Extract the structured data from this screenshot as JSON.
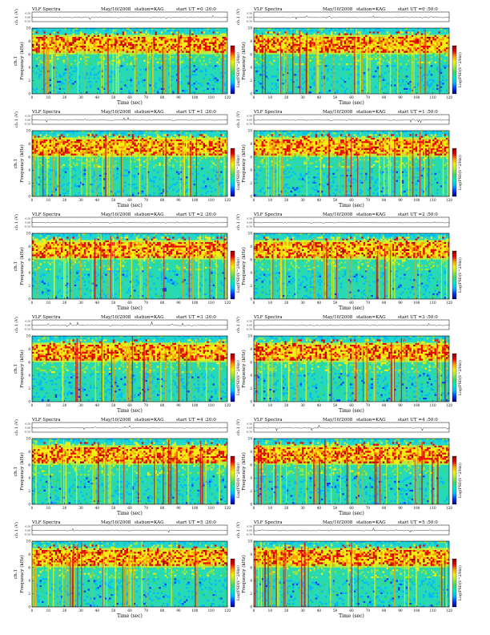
{
  "page": {
    "colors": {
      "background": "#ffffff",
      "ink": "#000000"
    },
    "colormap": [
      "#00007a",
      "#0033ff",
      "#00b8ff",
      "#00e8c8",
      "#39d86a",
      "#9be63a",
      "#f2f20a",
      "#ff9a00",
      "#e60000",
      "#8c0000"
    ]
  },
  "chart_data": [
    {
      "type": "heatmap",
      "title": "VLF Spectra",
      "date": "May/10/2008",
      "station": "station=KAG",
      "start_label": "start UT =0 :20:0",
      "xlabel": "Time (sec)",
      "ylabel": "Frequency (kHz)",
      "channel_label": "ch.1 (V)",
      "channel_ticks": [
        "0.20",
        "0.00",
        "-0.20"
      ],
      "colorbar_label": "Log(PSD(V^2/Hz))",
      "x_ticks": [
        0,
        10,
        20,
        30,
        40,
        50,
        60,
        70,
        80,
        90,
        100,
        110,
        120
      ],
      "y_ticks": [
        0,
        2,
        4,
        6,
        8,
        10
      ],
      "xlim": [
        0,
        120
      ],
      "ylim": [
        0,
        10
      ],
      "side_label": "ch.1"
    },
    {
      "type": "heatmap",
      "title": "VLF Spectra",
      "date": "May/10/2008",
      "station": "station=KAG",
      "start_label": "start UT =0 :50:0",
      "xlabel": "Time (sec)",
      "ylabel": "Frequency (kHz)",
      "channel_label": "ch.1 (V)",
      "channel_ticks": [
        "0.20",
        "0.00",
        "-0.20"
      ],
      "colorbar_label": "Log(PSD(V^2/Hz))",
      "x_ticks": [
        0,
        10,
        20,
        30,
        40,
        50,
        60,
        70,
        80,
        90,
        100,
        110,
        120
      ],
      "y_ticks": [
        0,
        2,
        4,
        6,
        8,
        10
      ],
      "xlim": [
        0,
        120
      ],
      "ylim": [
        0,
        10
      ],
      "side_label": ""
    },
    {
      "type": "heatmap",
      "title": "VLF Spectra",
      "date": "May/10/2008",
      "station": "station=KAG",
      "start_label": "start UT =1 :20:0",
      "xlabel": "Time (sec)",
      "ylabel": "Frequency (kHz)",
      "channel_label": "ch.1 (V)",
      "channel_ticks": [
        "0.20",
        "0.00",
        "-0.20"
      ],
      "colorbar_label": "Log(PSD(V^2/Hz))",
      "x_ticks": [
        0,
        10,
        20,
        30,
        40,
        50,
        60,
        70,
        80,
        90,
        100,
        110,
        120
      ],
      "y_ticks": [
        0,
        2,
        4,
        6,
        8,
        10
      ],
      "xlim": [
        0,
        120
      ],
      "ylim": [
        0,
        10
      ],
      "side_label": "ch.1"
    },
    {
      "type": "heatmap",
      "title": "VLF Spectra",
      "date": "May/10/2008",
      "station": "station=KAG",
      "start_label": "start UT =1 :50:0",
      "xlabel": "Time (sec)",
      "ylabel": "Frequency (kHz)",
      "channel_label": "ch.1 (V)",
      "channel_ticks": [
        "0.20",
        "0.00",
        "-0.20"
      ],
      "colorbar_label": "Log(PSD(V^2/Hz))",
      "x_ticks": [
        0,
        10,
        20,
        30,
        40,
        50,
        60,
        70,
        80,
        90,
        100,
        110,
        120
      ],
      "y_ticks": [
        0,
        2,
        4,
        6,
        8,
        10
      ],
      "xlim": [
        0,
        120
      ],
      "ylim": [
        0,
        10
      ],
      "side_label": ""
    },
    {
      "type": "heatmap",
      "title": "VLF Spectra",
      "date": "May/10/2008",
      "station": "station=KAG",
      "start_label": "start UT =2 :20:0",
      "xlabel": "Time (sec)",
      "ylabel": "Frequency (kHz)",
      "channel_label": "ch.1 (V)",
      "channel_ticks": [
        "0.20",
        "0.00",
        "-0.20"
      ],
      "colorbar_label": "Log(PSD(V^2/Hz))",
      "x_ticks": [
        0,
        10,
        20,
        30,
        40,
        50,
        60,
        70,
        80,
        90,
        100,
        110,
        120
      ],
      "y_ticks": [
        0,
        2,
        4,
        6,
        8,
        10
      ],
      "xlim": [
        0,
        120
      ],
      "ylim": [
        0,
        10
      ],
      "side_label": "ch.1"
    },
    {
      "type": "heatmap",
      "title": "VLF Spectra",
      "date": "May/10/2008",
      "station": "station=KAG",
      "start_label": "start UT =2 :50:0",
      "xlabel": "Time (sec)",
      "ylabel": "Frequency (kHz)",
      "channel_label": "ch.1 (V)",
      "channel_ticks": [
        "0.20",
        "0.00",
        "-0.20"
      ],
      "colorbar_label": "Log(PSD(V^2/Hz))",
      "x_ticks": [
        0,
        10,
        20,
        30,
        40,
        50,
        60,
        70,
        80,
        90,
        100,
        110,
        120
      ],
      "y_ticks": [
        0,
        2,
        4,
        6,
        8,
        10
      ],
      "xlim": [
        0,
        120
      ],
      "ylim": [
        0,
        10
      ],
      "side_label": ""
    },
    {
      "type": "heatmap",
      "title": "VLF Spectra",
      "date": "May/10/2008",
      "station": "station=KAG",
      "start_label": "start UT =3 :20:0",
      "xlabel": "Time (sec)",
      "ylabel": "Frequency (kHz)",
      "channel_label": "ch.1 (V)",
      "channel_ticks": [
        "0.20",
        "0.00",
        "-0.20"
      ],
      "colorbar_label": "Log(PSD(V^2/Hz))",
      "x_ticks": [
        0,
        10,
        20,
        30,
        40,
        50,
        60,
        70,
        80,
        90,
        100,
        110,
        120
      ],
      "y_ticks": [
        0,
        2,
        4,
        6,
        8,
        10
      ],
      "xlim": [
        0,
        120
      ],
      "ylim": [
        0,
        10
      ],
      "side_label": "ch.1"
    },
    {
      "type": "heatmap",
      "title": "VLF Spectra",
      "date": "May/10/2008",
      "station": "station=KAG",
      "start_label": "start UT =3 :50:0",
      "xlabel": "Time (sec)",
      "ylabel": "Frequency (kHz)",
      "channel_label": "ch.1 (V)",
      "channel_ticks": [
        "0.20",
        "0.00",
        "-0.20"
      ],
      "colorbar_label": "Log(PSD(V^2/Hz))",
      "x_ticks": [
        0,
        10,
        20,
        30,
        40,
        50,
        60,
        70,
        80,
        90,
        100,
        110,
        120
      ],
      "y_ticks": [
        0,
        2,
        4,
        6,
        8,
        10
      ],
      "xlim": [
        0,
        120
      ],
      "ylim": [
        0,
        10
      ],
      "side_label": ""
    },
    {
      "type": "heatmap",
      "title": "VLF Spectra",
      "date": "May/10/2008",
      "station": "station=KAG",
      "start_label": "start UT =4 :20:0",
      "xlabel": "Time (sec)",
      "ylabel": "Frequency (kHz)",
      "channel_label": "ch.1 (V)",
      "channel_ticks": [
        "0.20",
        "0.00",
        "-0.20"
      ],
      "colorbar_label": "Log(PSD(V^2/Hz))",
      "x_ticks": [
        0,
        10,
        20,
        30,
        40,
        50,
        60,
        70,
        80,
        90,
        100,
        110,
        120
      ],
      "y_ticks": [
        0,
        2,
        4,
        6,
        8,
        10
      ],
      "xlim": [
        0,
        120
      ],
      "ylim": [
        0,
        10
      ],
      "side_label": "ch.1"
    },
    {
      "type": "heatmap",
      "title": "VLF Spectra",
      "date": "May/10/2008",
      "station": "station=KAG",
      "start_label": "start UT =4 :50:0",
      "xlabel": "Time (sec)",
      "ylabel": "Frequency (kHz)",
      "channel_label": "ch.1 (V)",
      "channel_ticks": [
        "0.20",
        "0.00",
        "-0.20"
      ],
      "colorbar_label": "Log(PSD(V^2/Hz))",
      "x_ticks": [
        0,
        10,
        20,
        30,
        40,
        50,
        60,
        70,
        80,
        90,
        100,
        110,
        120
      ],
      "y_ticks": [
        0,
        2,
        4,
        6,
        8,
        10
      ],
      "xlim": [
        0,
        120
      ],
      "ylim": [
        0,
        10
      ],
      "side_label": ""
    },
    {
      "type": "heatmap",
      "title": "VLF Spectra",
      "date": "May/10/2008",
      "station": "station=KAG",
      "start_label": "start UT =5 :20:0",
      "xlabel": "Time (sec)",
      "ylabel": "Frequency (kHz)",
      "channel_label": "ch.1 (V)",
      "channel_ticks": [
        "0.20",
        "0.00",
        "-0.20"
      ],
      "colorbar_label": "Log(PSD(V^2/Hz))",
      "x_ticks": [
        0,
        10,
        20,
        30,
        40,
        50,
        60,
        70,
        80,
        90,
        100,
        110,
        120
      ],
      "y_ticks": [
        0,
        2,
        4,
        6,
        8,
        10
      ],
      "xlim": [
        0,
        120
      ],
      "ylim": [
        0,
        10
      ],
      "side_label": "ch.1"
    },
    {
      "type": "heatmap",
      "title": "VLF Spectra",
      "date": "May/10/2008",
      "station": "station=KAG",
      "start_label": "start UT =5 :50:0",
      "xlabel": "Time (sec)",
      "ylabel": "Frequency (kHz)",
      "channel_label": "ch.1 (V)",
      "channel_ticks": [
        "0.20",
        "0.00",
        "-0.20"
      ],
      "colorbar_label": "Log(PSD(V^2/Hz))",
      "x_ticks": [
        0,
        10,
        20,
        30,
        40,
        50,
        60,
        70,
        80,
        90,
        100,
        110,
        120
      ],
      "y_ticks": [
        0,
        2,
        4,
        6,
        8,
        10
      ],
      "xlim": [
        0,
        120
      ],
      "ylim": [
        0,
        10
      ],
      "side_label": ""
    }
  ]
}
